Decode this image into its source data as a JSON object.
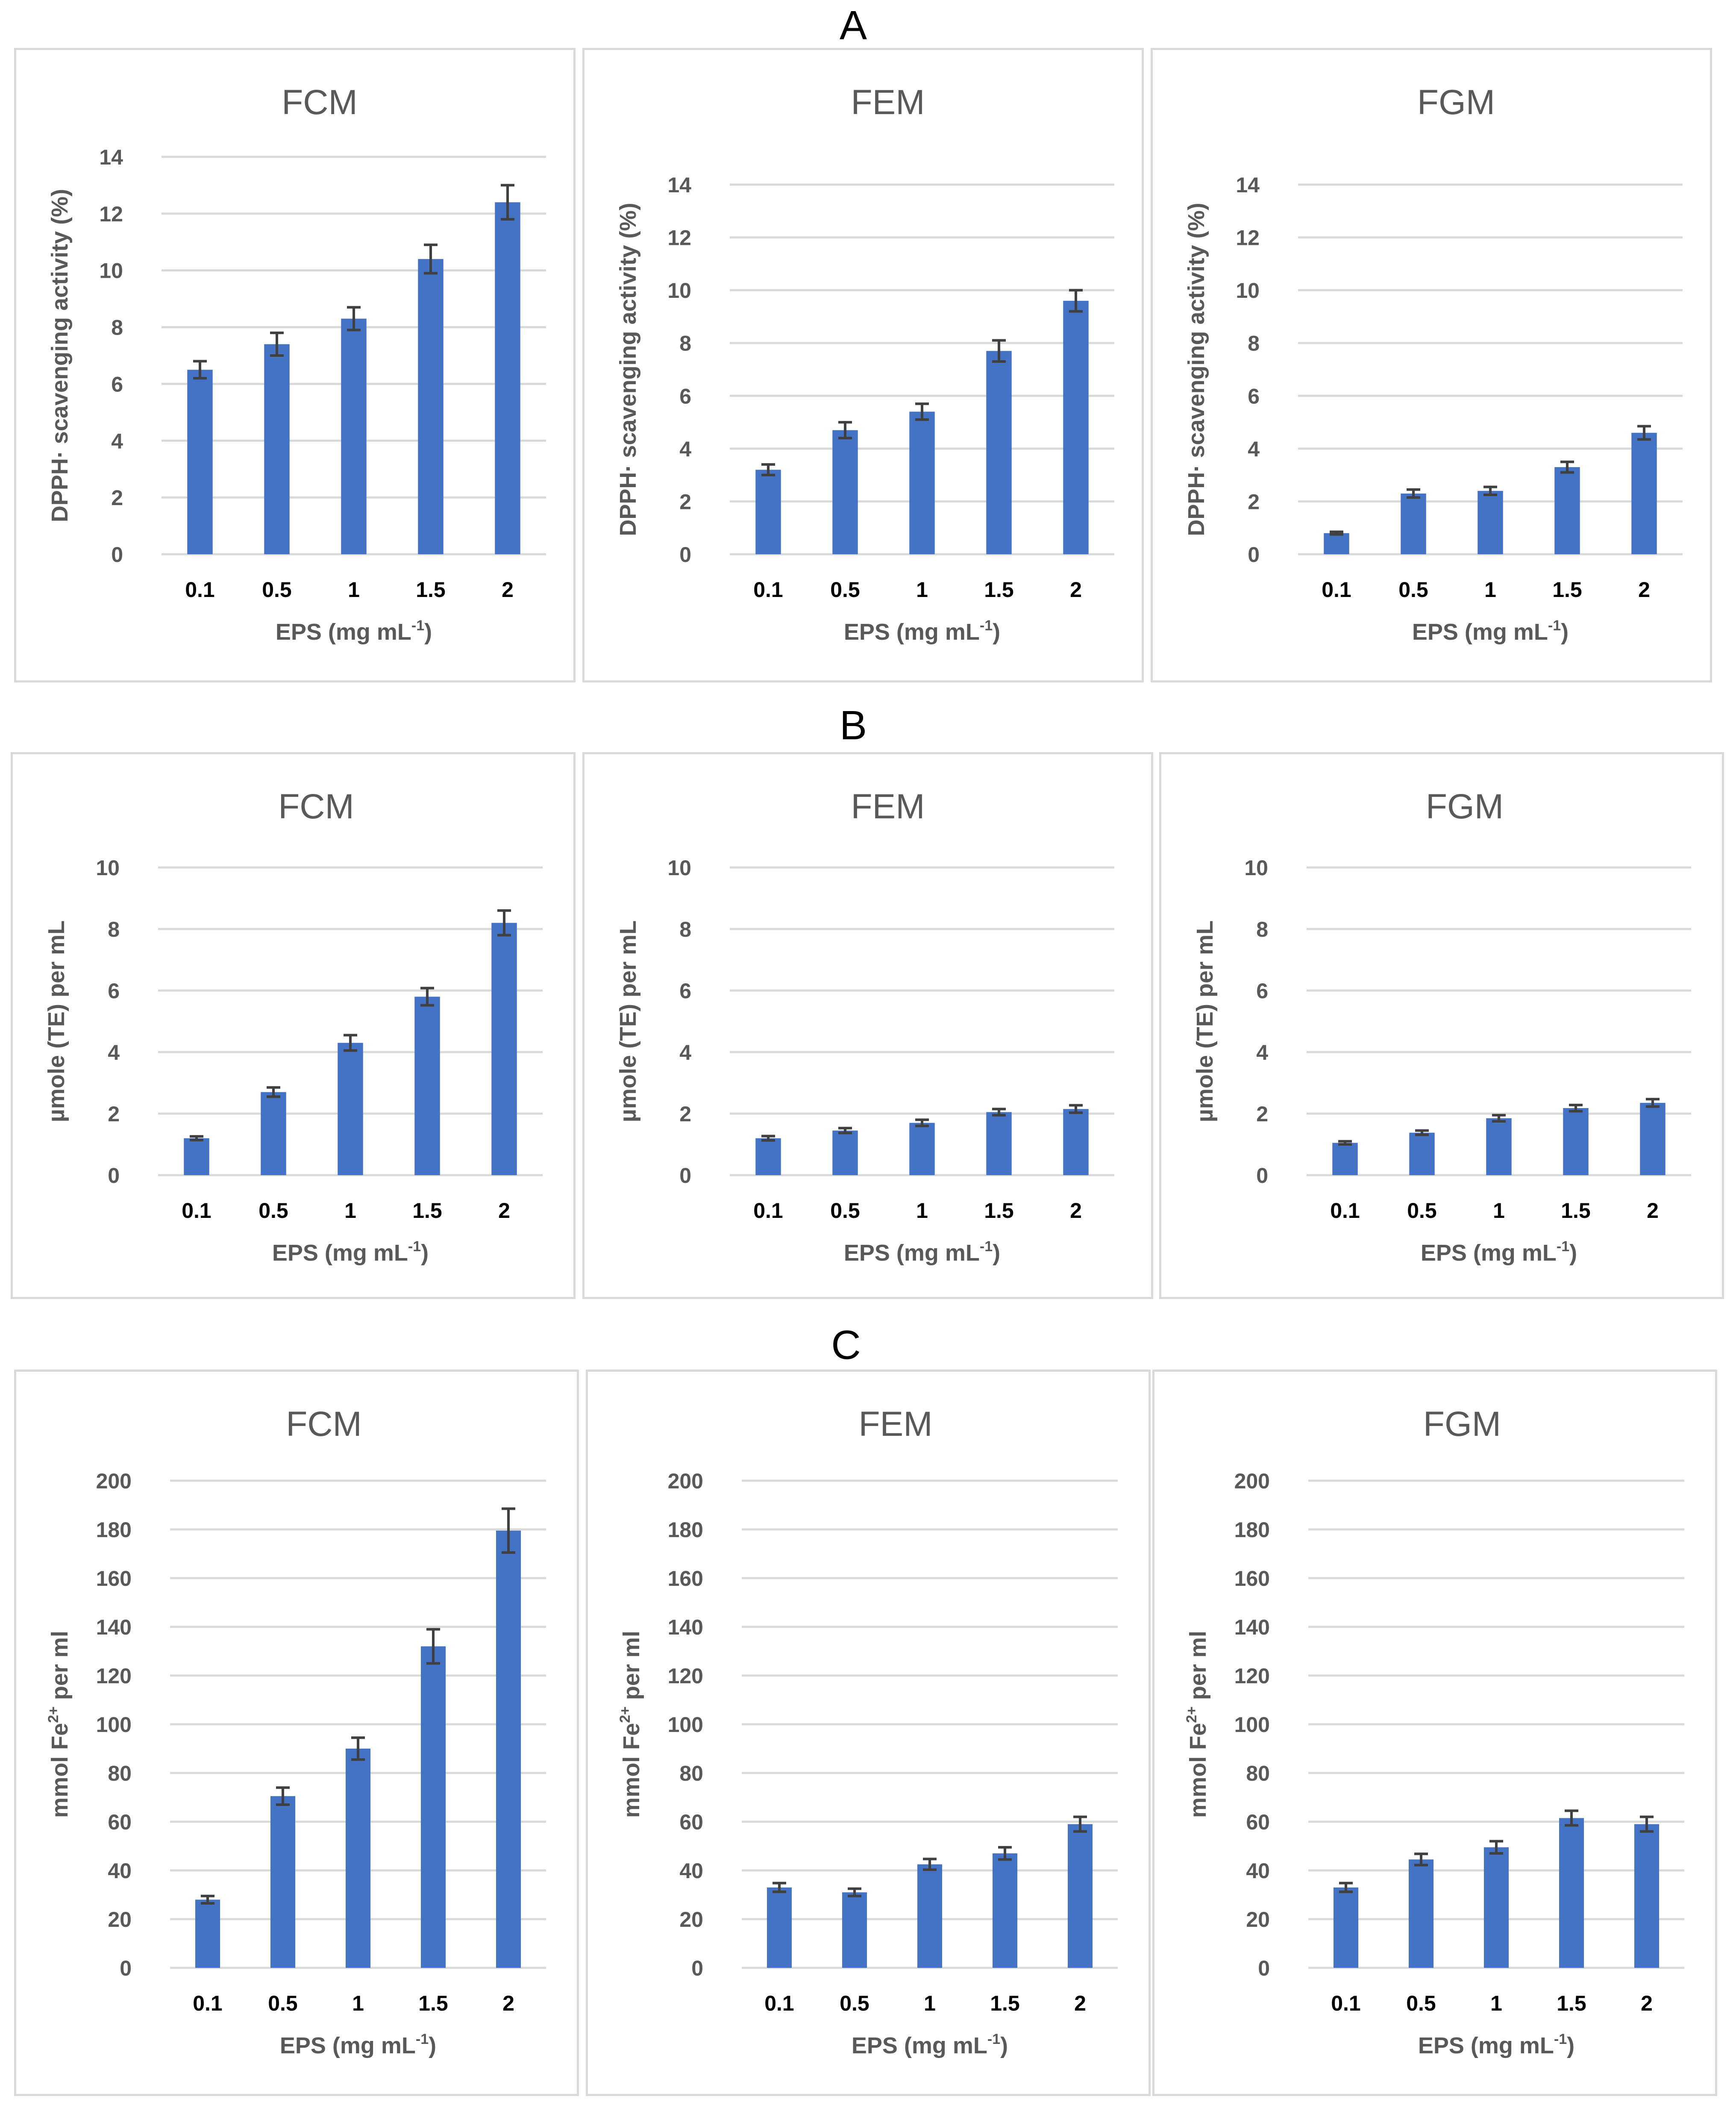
{
  "sections": [
    {
      "label": "A",
      "ylabel": "DPPH· scavenging activity (%)",
      "charts": [
        {
          "title": "FCM"
        },
        {
          "title": "FEM"
        },
        {
          "title": "FGM"
        }
      ]
    },
    {
      "label": "B",
      "ylabel": "µmole (TE) per mL",
      "charts": [
        {
          "title": "FCM"
        },
        {
          "title": "FEM"
        },
        {
          "title": "FGM"
        }
      ]
    },
    {
      "label": "C",
      "ylabel": "mmol Fe2+ per ml",
      "charts": [
        {
          "title": "FCM"
        },
        {
          "title": "FEM"
        },
        {
          "title": "FGM"
        }
      ]
    }
  ],
  "colors": {
    "bar": "#4472c4",
    "grid": "#d9d9d9",
    "text": "#595959",
    "error": "#404040"
  },
  "chart_data": [
    {
      "section": "A",
      "type": "bar",
      "title": "FCM",
      "categories": [
        "0.1",
        "0.5",
        "1",
        "1.5",
        "2"
      ],
      "values": [
        6.5,
        7.4,
        8.3,
        10.4,
        12.4
      ],
      "errors": [
        0.3,
        0.4,
        0.4,
        0.5,
        0.6
      ],
      "xlabel": "EPS (mg mL",
      "xlabel_sup": "-1",
      "xlabel_end": ")",
      "ylabel": "DPPH· scavenging activity (%)",
      "ylim": [
        0,
        14
      ],
      "yticks": [
        0,
        2,
        4,
        6,
        8,
        10,
        12,
        14
      ]
    },
    {
      "section": "A",
      "type": "bar",
      "title": "FEM",
      "categories": [
        "0.1",
        "0.5",
        "1",
        "1.5",
        "2"
      ],
      "values": [
        3.2,
        4.7,
        5.4,
        7.7,
        9.6
      ],
      "errors": [
        0.2,
        0.3,
        0.3,
        0.4,
        0.4
      ],
      "xlabel": "EPS (mg mL",
      "xlabel_sup": "-1",
      "xlabel_end": ")",
      "ylabel": "DPPH· scavenging activity (%)",
      "ylim": [
        0,
        14
      ],
      "yticks": [
        0,
        2,
        4,
        6,
        8,
        10,
        12,
        14
      ]
    },
    {
      "section": "A",
      "type": "bar",
      "title": "FGM",
      "categories": [
        "0.1",
        "0.5",
        "1",
        "1.5",
        "2"
      ],
      "values": [
        0.8,
        2.3,
        2.4,
        3.3,
        4.6
      ],
      "errors": [
        0.05,
        0.15,
        0.15,
        0.2,
        0.25
      ],
      "xlabel": "EPS (mg mL",
      "xlabel_sup": "-1",
      "xlabel_end": ")",
      "ylabel": "DPPH· scavenging activity (%)",
      "ylim": [
        0,
        14
      ],
      "yticks": [
        0,
        2,
        4,
        6,
        8,
        10,
        12,
        14
      ]
    },
    {
      "section": "B",
      "type": "bar",
      "title": "FCM",
      "categories": [
        "0.1",
        "0.5",
        "1",
        "1.5",
        "2"
      ],
      "values": [
        1.2,
        2.7,
        4.3,
        5.8,
        8.2
      ],
      "errors": [
        0.06,
        0.15,
        0.25,
        0.28,
        0.4
      ],
      "xlabel": "EPS (mg mL",
      "xlabel_sup": "-1",
      "xlabel_end": ")",
      "ylabel": "µmole (TE) per mL",
      "ylim": [
        0,
        10
      ],
      "yticks": [
        0,
        2,
        4,
        6,
        8,
        10
      ]
    },
    {
      "section": "B",
      "type": "bar",
      "title": "FEM",
      "categories": [
        "0.1",
        "0.5",
        "1",
        "1.5",
        "2"
      ],
      "values": [
        1.2,
        1.45,
        1.7,
        2.05,
        2.15
      ],
      "errors": [
        0.07,
        0.08,
        0.1,
        0.1,
        0.12
      ],
      "xlabel": "EPS (mg mL",
      "xlabel_sup": "-1",
      "xlabel_end": ")",
      "ylabel": "µmole (TE) per mL",
      "ylim": [
        0,
        10
      ],
      "yticks": [
        0,
        2,
        4,
        6,
        8,
        10
      ]
    },
    {
      "section": "B",
      "type": "bar",
      "title": "FGM",
      "categories": [
        "0.1",
        "0.5",
        "1",
        "1.5",
        "2"
      ],
      "values": [
        1.05,
        1.38,
        1.85,
        2.18,
        2.35
      ],
      "errors": [
        0.05,
        0.07,
        0.1,
        0.1,
        0.12
      ],
      "xlabel": "EPS (mg mL",
      "xlabel_sup": "-1",
      "xlabel_end": ")",
      "ylabel": "µmole (TE) per mL",
      "ylim": [
        0,
        10
      ],
      "yticks": [
        0,
        2,
        4,
        6,
        8,
        10
      ]
    },
    {
      "section": "C",
      "type": "bar",
      "title": "FCM",
      "categories": [
        "0.1",
        "0.5",
        "1",
        "1.5",
        "2"
      ],
      "values": [
        28,
        70.5,
        90,
        132,
        179.5
      ],
      "errors": [
        1.5,
        3.5,
        4.5,
        7,
        9
      ],
      "xlabel": "EPS (mg mL",
      "xlabel_sup": "-1",
      "xlabel_end": ")",
      "ylabel": "mmol Fe2+ per ml",
      "ylim": [
        0,
        200
      ],
      "yticks": [
        0,
        20,
        40,
        60,
        80,
        100,
        120,
        140,
        160,
        180,
        200
      ]
    },
    {
      "section": "C",
      "type": "bar",
      "title": "FEM",
      "categories": [
        "0.1",
        "0.5",
        "1",
        "1.5",
        "2"
      ],
      "values": [
        33,
        31,
        42.5,
        47,
        59
      ],
      "errors": [
        1.8,
        1.5,
        2.2,
        2.5,
        3
      ],
      "xlabel": "EPS (mg mL",
      "xlabel_sup": "-1",
      "xlabel_end": ")",
      "ylabel": "mmol Fe2+ per ml",
      "ylim": [
        0,
        200
      ],
      "yticks": [
        0,
        20,
        40,
        60,
        80,
        100,
        120,
        140,
        160,
        180,
        200
      ]
    },
    {
      "section": "C",
      "type": "bar",
      "title": "FGM",
      "categories": [
        "0.1",
        "0.5",
        "1",
        "1.5",
        "2"
      ],
      "values": [
        33,
        44.5,
        49.5,
        61.5,
        59
      ],
      "errors": [
        1.8,
        2.3,
        2.5,
        3,
        3
      ],
      "xlabel": "EPS (mg mL",
      "xlabel_sup": "-1",
      "xlabel_end": ")",
      "ylabel": "mmol Fe2+ per ml",
      "ylim": [
        0,
        200
      ],
      "yticks": [
        0,
        20,
        40,
        60,
        80,
        100,
        120,
        140,
        160,
        180,
        200
      ]
    }
  ]
}
